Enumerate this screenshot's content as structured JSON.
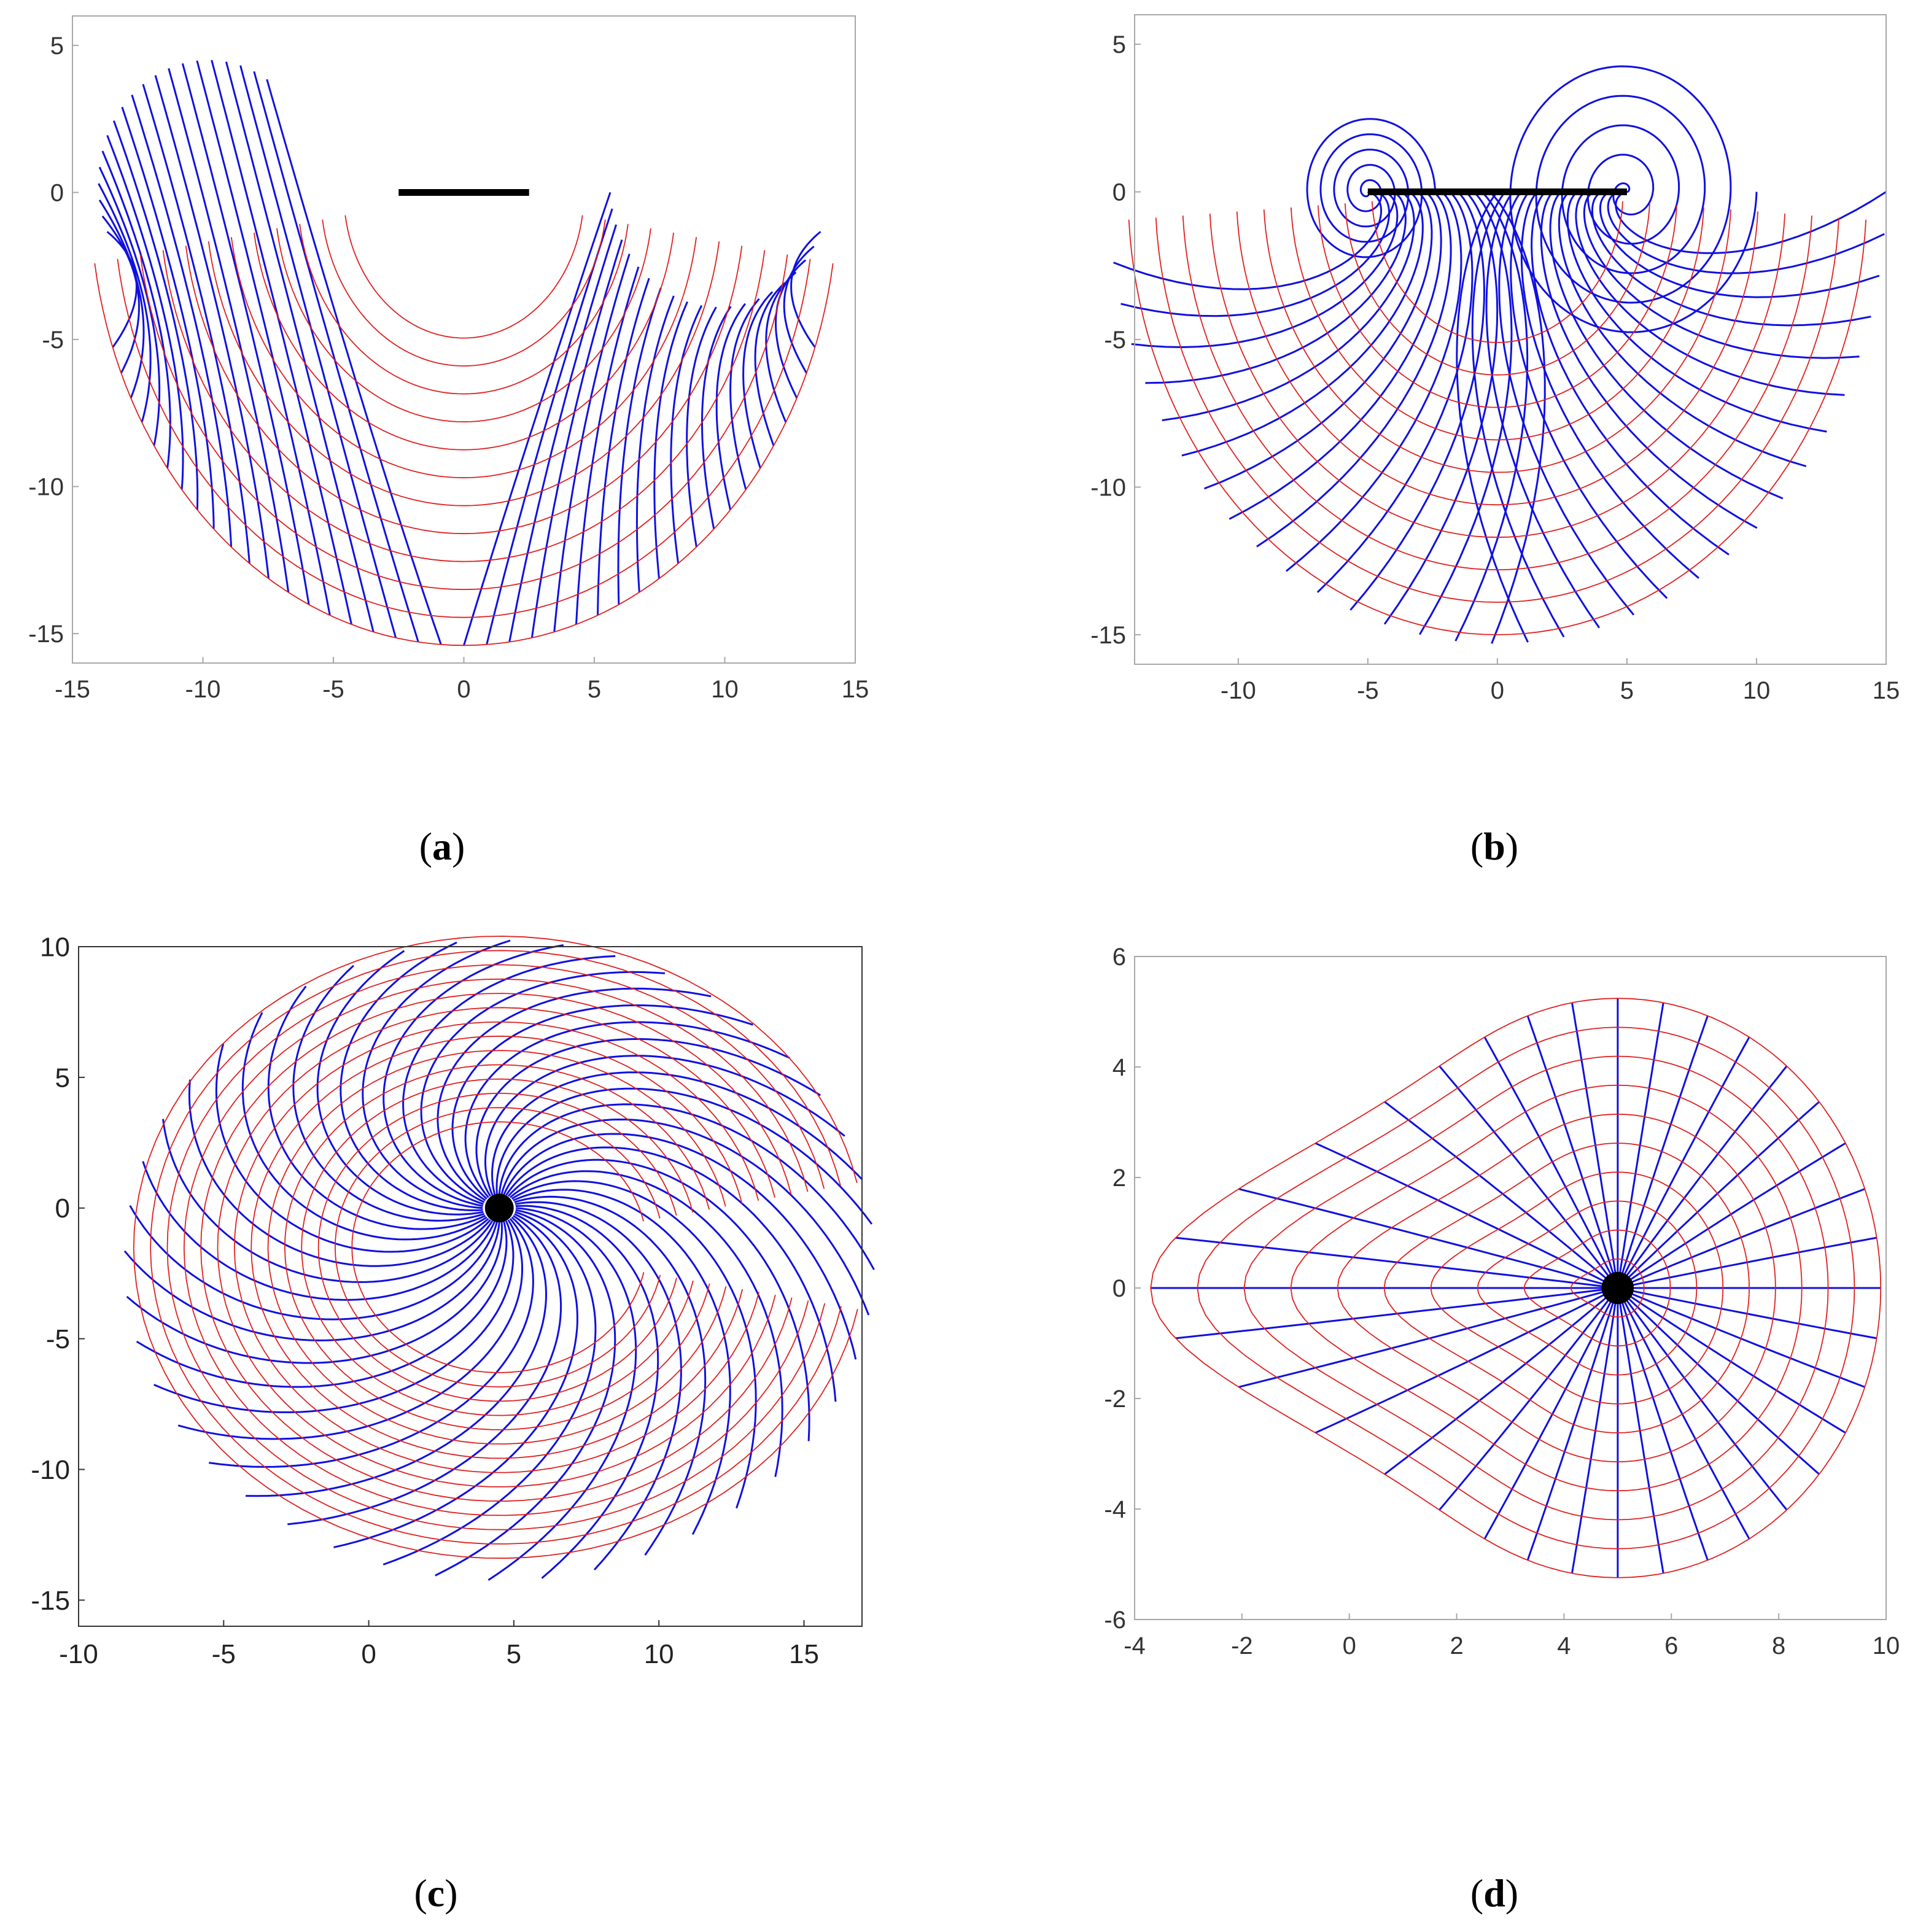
{
  "colors": {
    "orthogonal_curves": "#e02020",
    "radial_curves": "#1010e0",
    "obstacle": "#000000",
    "axes_box": "#a8a8a8",
    "axes_box_c": "#333333",
    "background": "#ffffff"
  },
  "panels": [
    {
      "caption_letter": "a",
      "x_tick_labels": [
        "-15",
        "-10",
        "-5",
        "0",
        "5",
        "10",
        "15"
      ],
      "y_tick_labels": [
        "5",
        "0",
        "-5",
        "-10",
        "-15"
      ]
    },
    {
      "caption_letter": "b",
      "x_tick_labels": [
        "-10",
        "-5",
        "0",
        "5",
        "10",
        "15"
      ],
      "y_tick_labels": [
        "5",
        "0",
        "-5",
        "-10",
        "-15"
      ]
    },
    {
      "caption_letter": "c",
      "x_tick_labels": [
        "-10",
        "-5",
        "0",
        "5",
        "10",
        "15"
      ],
      "y_tick_labels": [
        "10",
        "5",
        "0",
        "-5",
        "-10",
        "-15"
      ]
    },
    {
      "caption_letter": "d",
      "x_tick_labels": [
        "-4",
        "-2",
        "0",
        "2",
        "4",
        "6",
        "8",
        "10"
      ],
      "y_tick_labels": [
        "6",
        "4",
        "2",
        "0",
        "-2",
        "-4",
        "-6"
      ]
    }
  ],
  "chart_data": [
    {
      "type": "line",
      "panel": "a",
      "xlim": [
        -15,
        15
      ],
      "ylim": [
        -16,
        6
      ],
      "xticks": [
        -15,
        -10,
        -5,
        0,
        5,
        10,
        15
      ],
      "yticks": [
        5,
        0,
        -5,
        -10,
        -15
      ],
      "obstacle": {
        "kind": "segment",
        "from": [
          -2.5,
          0
        ],
        "to": [
          2.5,
          0
        ]
      },
      "field": {
        "shape": "two-lobes",
        "hole_centers": [
          [
            -9.8,
            0.3
          ],
          [
            9.8,
            0.3
          ]
        ],
        "hole_radius": 4.2,
        "outer_radius": 15.4
      },
      "radial_curve_count": 40,
      "orthogonal_curve_count": 12,
      "grid": false
    },
    {
      "type": "line",
      "panel": "b",
      "xlim": [
        -14,
        15
      ],
      "ylim": [
        -16,
        6
      ],
      "xticks": [
        -10,
        -5,
        0,
        5,
        10,
        15
      ],
      "yticks": [
        5,
        0,
        -5,
        -10,
        -15
      ],
      "obstacle": {
        "kind": "segment",
        "from": [
          -5,
          0
        ],
        "to": [
          5,
          0
        ]
      },
      "field": {
        "shape": "spiral-vortices",
        "vortex_centers": [
          [
            -5,
            0
          ],
          [
            5,
            0
          ]
        ],
        "outer_radius": 15
      },
      "radial_curve_count": 32,
      "orthogonal_curve_count": 10,
      "grid": false
    },
    {
      "type": "line",
      "panel": "c",
      "xlim": [
        -10,
        17
      ],
      "ylim": [
        -16,
        10
      ],
      "xticks": [
        -10,
        -5,
        0,
        5,
        10,
        15
      ],
      "yticks": [
        10,
        5,
        0,
        -5,
        -10,
        -15
      ],
      "obstacle": {
        "kind": "disk",
        "center": [
          4.5,
          0
        ],
        "radius": 0.55
      },
      "field": {
        "shape": "swirl",
        "source": [
          4.5,
          0
        ],
        "secondary_vortex": [
          -5.3,
          -0.3
        ]
      },
      "radial_curve_count": 44,
      "orthogonal_curve_count": 14,
      "grid": false
    },
    {
      "type": "line",
      "panel": "d",
      "xlim": [
        -4,
        10
      ],
      "ylim": [
        -6,
        6
      ],
      "xticks": [
        -4,
        -2,
        0,
        2,
        4,
        6,
        8,
        10
      ],
      "yticks": [
        6,
        4,
        2,
        0,
        -2,
        -4,
        -6
      ],
      "obstacle": {
        "kind": "disk",
        "center": [
          5,
          0
        ],
        "radius": 0.3
      },
      "field": {
        "shape": "teardrop",
        "source": [
          5,
          0
        ],
        "tip": [
          -3.7,
          0
        ],
        "outer_radius": 4.9
      },
      "radial_curve_count": 36,
      "orthogonal_curve_count": 10,
      "grid": false
    }
  ]
}
